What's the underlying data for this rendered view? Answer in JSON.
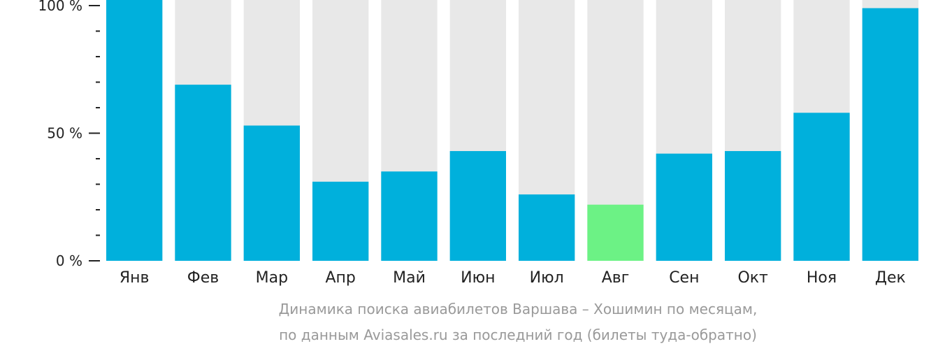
{
  "chart_data": {
    "type": "bar",
    "categories": [
      "Янв",
      "Фев",
      "Мар",
      "Апр",
      "Май",
      "Июн",
      "Июл",
      "Авг",
      "Сен",
      "Окт",
      "Ноя",
      "Дек"
    ],
    "values": [
      100,
      69,
      53,
      31,
      35,
      43,
      26,
      22,
      42,
      43,
      58,
      99
    ],
    "ylim": [
      0,
      100
    ],
    "yticks": [
      {
        "value": 0,
        "label": "0 %"
      },
      {
        "value": 50,
        "label": "50 %"
      },
      {
        "value": 100,
        "label": "100 %"
      }
    ],
    "minor_tick_step": 10,
    "title": "",
    "xlabel": "",
    "ylabel": "",
    "colors": {
      "bar": "#00b0dc",
      "highlight": "#6cf285",
      "background_bar": "#e8e8e8",
      "axis": "#222222"
    },
    "highlight_category": "Авг",
    "grid": false,
    "legend": "none"
  },
  "caption": {
    "line1": "Динамика поиска авиабилетов Варшава – Хошимин по месяцам,",
    "line2": "по данным Aviasales.ru за последний год (билеты туда-обратно)"
  }
}
